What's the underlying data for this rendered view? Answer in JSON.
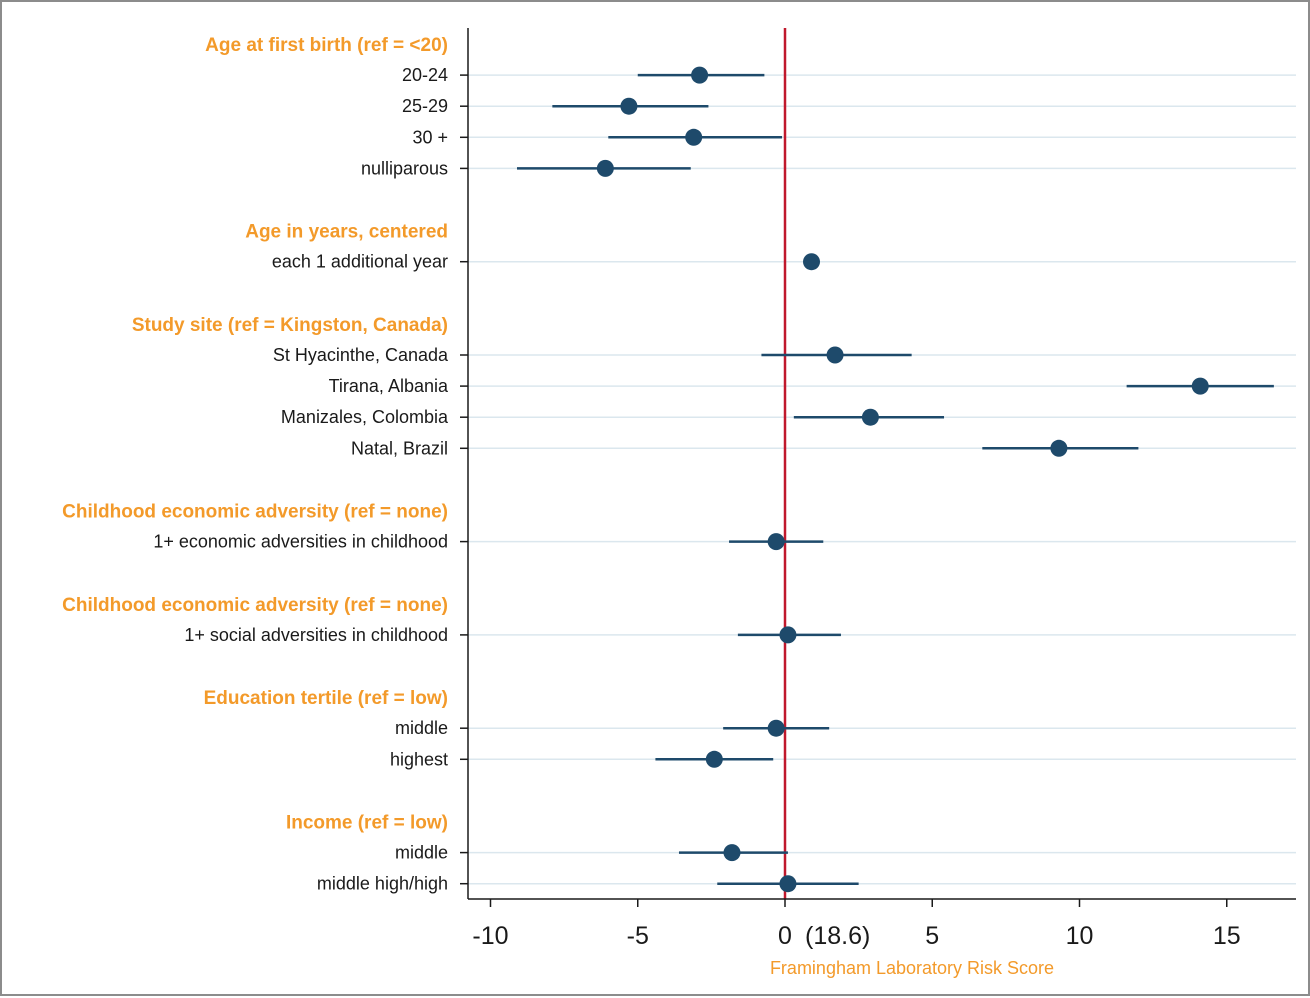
{
  "chart_data": {
    "type": "scatter",
    "subtype": "forest-plot",
    "xlabel": "Framingham Laboratory Risk Score",
    "xlim": [
      -10.7,
      17.2
    ],
    "xticks": [
      -10,
      -5,
      0,
      5,
      10,
      15
    ],
    "xtick_labels": [
      "-10",
      "-5",
      "0",
      "5",
      "10",
      "15"
    ],
    "reference_line": {
      "x": 0,
      "label": "(18.6)",
      "color": "#c0182c"
    },
    "grid": "horizontal",
    "marker_color": "#1e4a6b",
    "header_color": "#f39a2a",
    "rows": [
      {
        "kind": "header",
        "label": "Age at first birth (ref = <20)"
      },
      {
        "kind": "point",
        "label": "20-24",
        "estimate": -2.9,
        "lo": -5.0,
        "hi": -0.7
      },
      {
        "kind": "point",
        "label": "25-29",
        "estimate": -5.3,
        "lo": -7.9,
        "hi": -2.6
      },
      {
        "kind": "point",
        "label": "30 +",
        "estimate": -3.1,
        "lo": -6.0,
        "hi": -0.1
      },
      {
        "kind": "point",
        "label": "nulliparous",
        "estimate": -6.1,
        "lo": -9.1,
        "hi": -3.2
      },
      {
        "kind": "gap"
      },
      {
        "kind": "header",
        "label": "Age in years, centered"
      },
      {
        "kind": "point",
        "label": "each 1 additional year",
        "estimate": 0.9,
        "lo": 0.8,
        "hi": 1.0
      },
      {
        "kind": "gap"
      },
      {
        "kind": "header",
        "label": "Study site (ref = Kingston, Canada)"
      },
      {
        "kind": "point",
        "label": "St Hyacinthe, Canada",
        "estimate": 1.7,
        "lo": -0.8,
        "hi": 4.3
      },
      {
        "kind": "point",
        "label": "Tirana, Albania",
        "estimate": 14.1,
        "lo": 11.6,
        "hi": 16.6
      },
      {
        "kind": "point",
        "label": "Manizales, Colombia",
        "estimate": 2.9,
        "lo": 0.3,
        "hi": 5.4
      },
      {
        "kind": "point",
        "label": "Natal, Brazil",
        "estimate": 9.3,
        "lo": 6.7,
        "hi": 12.0
      },
      {
        "kind": "gap"
      },
      {
        "kind": "header",
        "label": "Childhood economic adversity (ref = none)"
      },
      {
        "kind": "point",
        "label": "1+ economic adversities in childhood",
        "estimate": -0.3,
        "lo": -1.9,
        "hi": 1.3
      },
      {
        "kind": "gap"
      },
      {
        "kind": "header",
        "label": "Childhood economic adversity (ref = none)"
      },
      {
        "kind": "point",
        "label": "1+ social adversities in childhood",
        "estimate": 0.1,
        "lo": -1.6,
        "hi": 1.9
      },
      {
        "kind": "gap"
      },
      {
        "kind": "header",
        "label": "Education tertile (ref = low)"
      },
      {
        "kind": "point",
        "label": "middle",
        "estimate": -0.3,
        "lo": -2.1,
        "hi": 1.5
      },
      {
        "kind": "point",
        "label": "highest",
        "estimate": -2.4,
        "lo": -4.4,
        "hi": -0.4
      },
      {
        "kind": "gap"
      },
      {
        "kind": "header",
        "label": "Income (ref = low)"
      },
      {
        "kind": "point",
        "label": "middle",
        "estimate": -1.8,
        "lo": -3.6,
        "hi": 0.1
      },
      {
        "kind": "point",
        "label": "middle high/high",
        "estimate": 0.1,
        "lo": -2.3,
        "hi": 2.5
      }
    ]
  }
}
